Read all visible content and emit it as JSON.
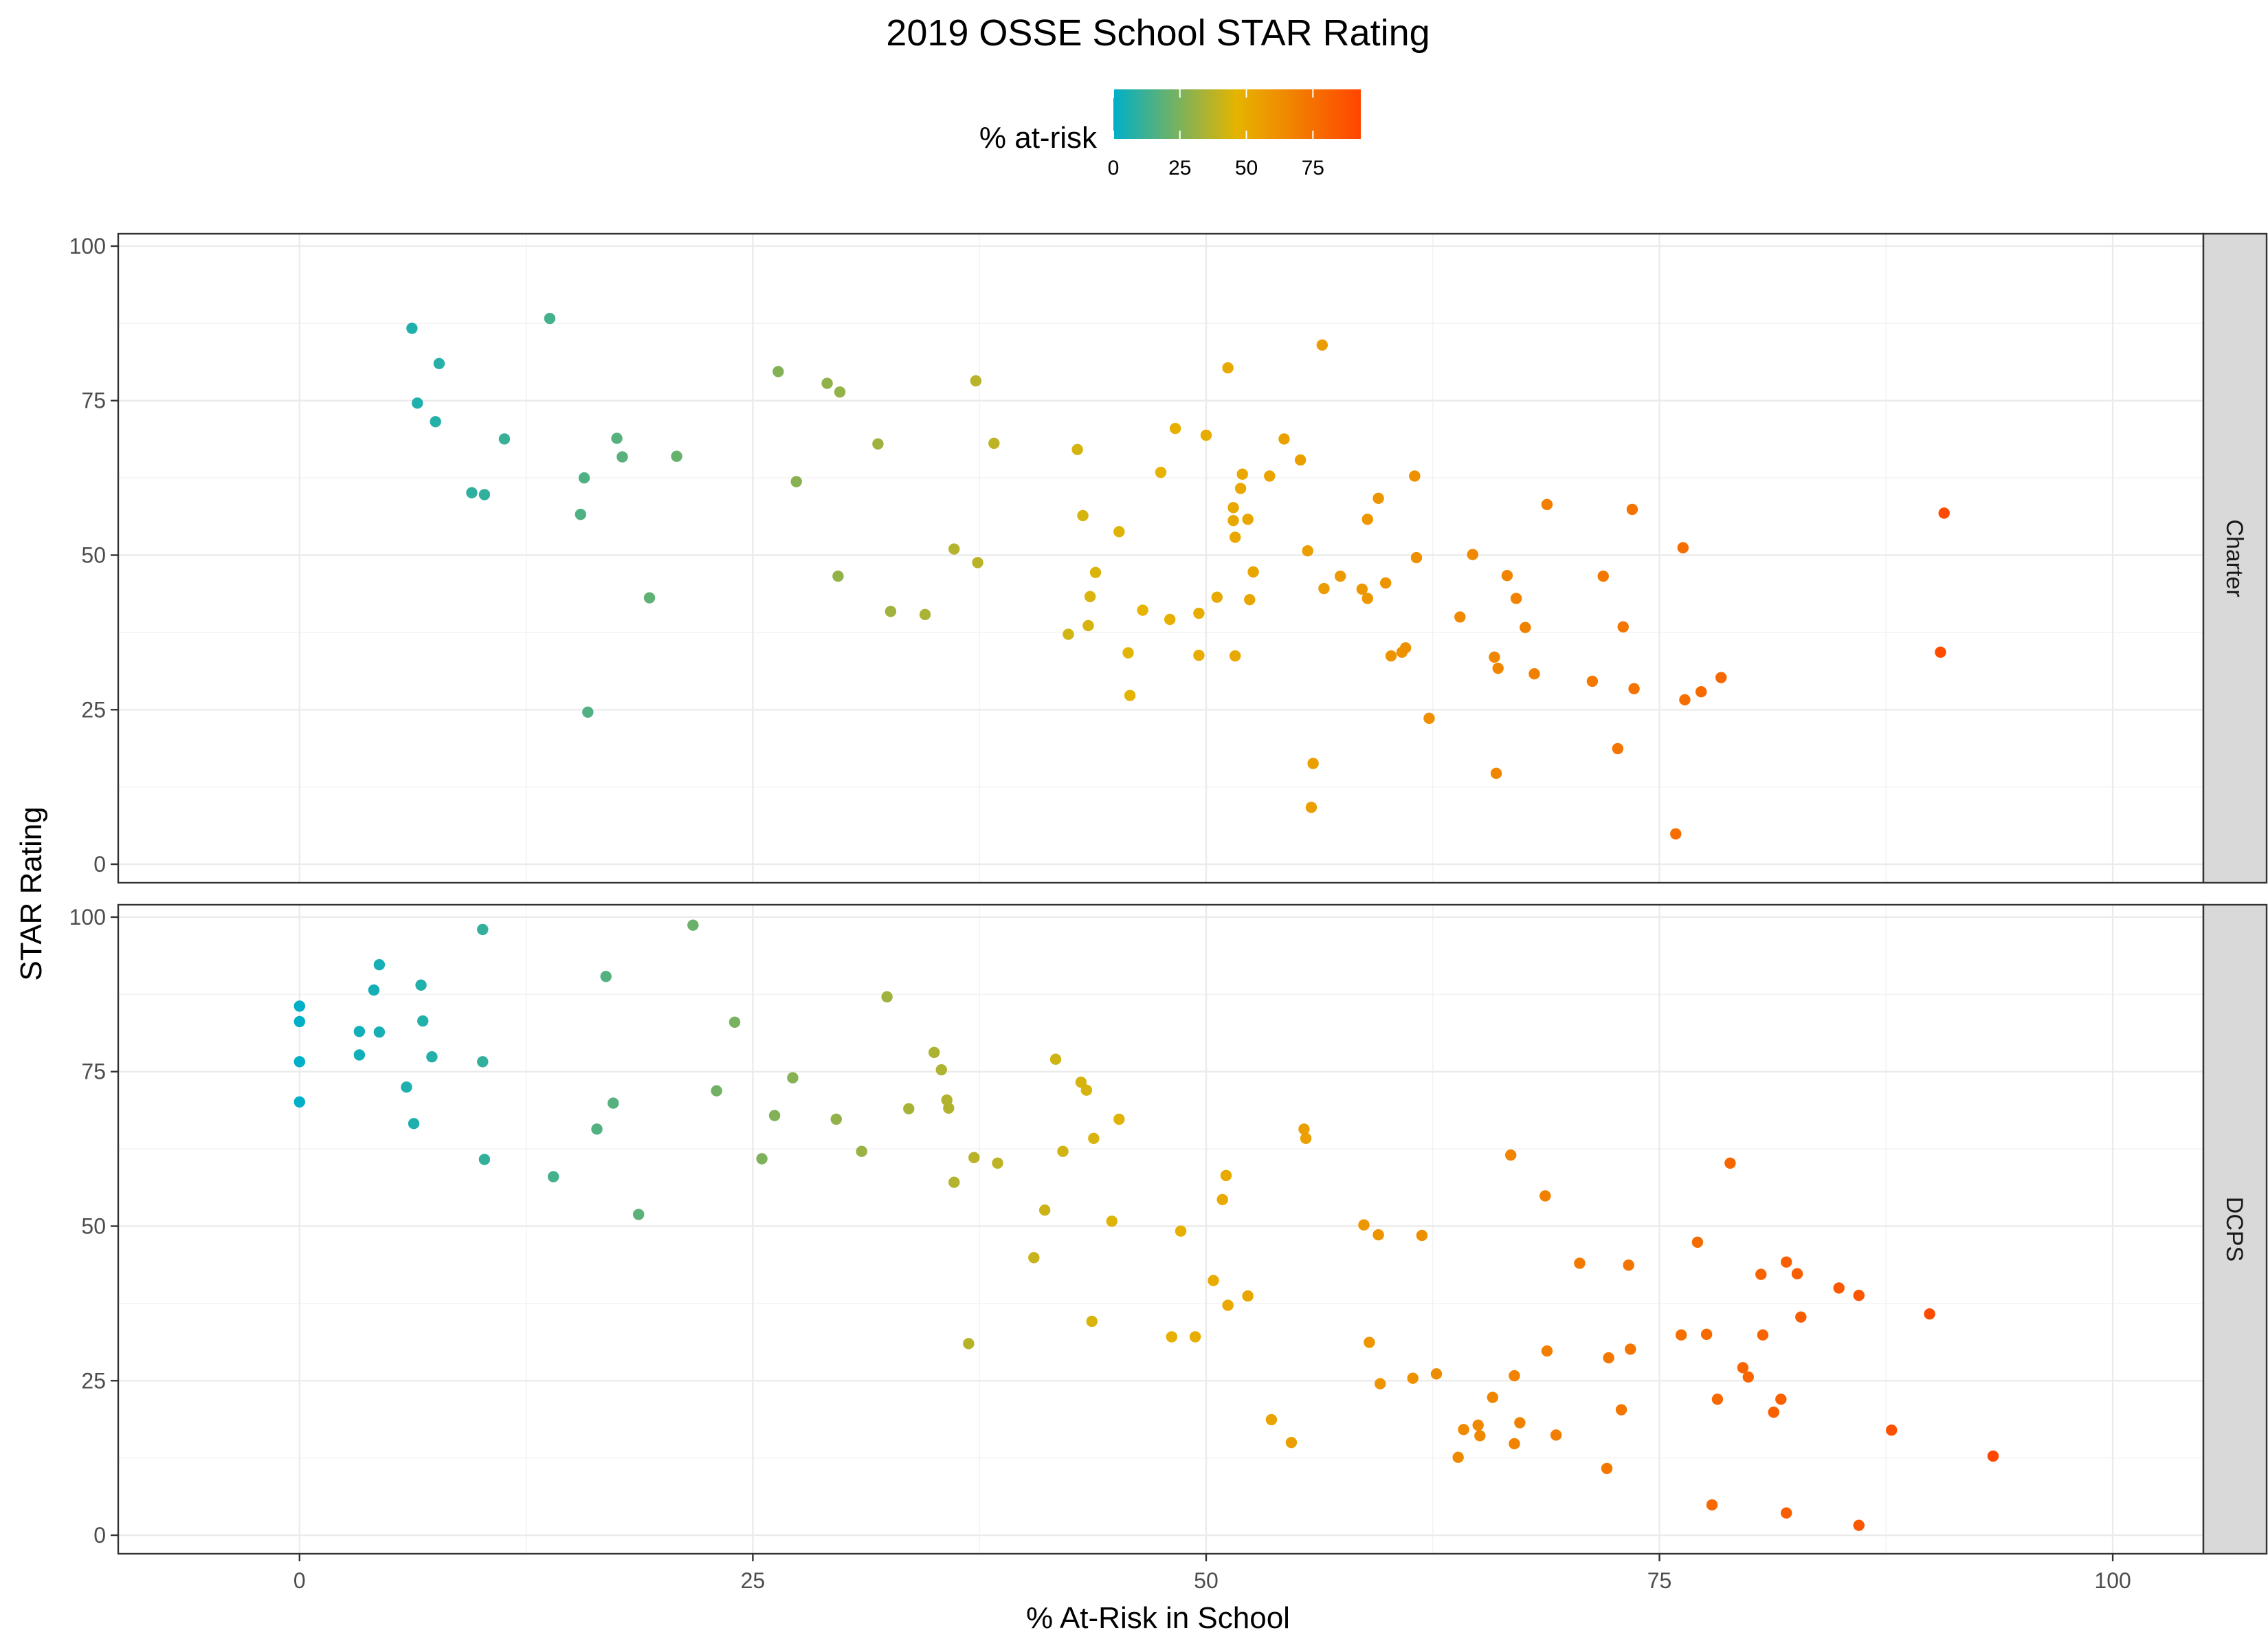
{
  "chart_data": {
    "type": "scatter",
    "title": "2019 OSSE School STAR Rating",
    "xlabel": "% At-Risk in School",
    "ylabel": "STAR Rating",
    "xlim": [
      -10,
      105
    ],
    "ylim": [
      -3,
      102
    ],
    "x_ticks": [
      0,
      25,
      50,
      75,
      100
    ],
    "y_ticks": [
      0,
      25,
      50,
      75,
      100
    ],
    "grid": true,
    "legend": {
      "title": "% at-risk",
      "position": "top",
      "ticks": [
        0,
        25,
        50,
        75
      ],
      "range": [
        0,
        93
      ],
      "colors": [
        "#00AFC8",
        "#E6B400",
        "#FF4500"
      ]
    },
    "facets": [
      {
        "name": "Charter",
        "points": [
          [
            6.2,
            86.7
          ],
          [
            13.8,
            88.3
          ],
          [
            7.7,
            81.0
          ],
          [
            6.5,
            74.6
          ],
          [
            7.5,
            71.6
          ],
          [
            11.3,
            68.8
          ],
          [
            17.5,
            68.9
          ],
          [
            17.8,
            65.9
          ],
          [
            20.8,
            66.0
          ],
          [
            15.7,
            62.5
          ],
          [
            9.5,
            60.1
          ],
          [
            10.2,
            59.8
          ],
          [
            15.5,
            56.6
          ],
          [
            19.3,
            43.1
          ],
          [
            15.9,
            24.6
          ],
          [
            26.4,
            79.7
          ],
          [
            29.1,
            77.8
          ],
          [
            29.8,
            76.4
          ],
          [
            37.3,
            78.2
          ],
          [
            27.4,
            61.9
          ],
          [
            31.9,
            68.0
          ],
          [
            38.3,
            68.1
          ],
          [
            36.1,
            51.0
          ],
          [
            37.4,
            48.8
          ],
          [
            29.7,
            46.6
          ],
          [
            32.6,
            40.9
          ],
          [
            34.5,
            40.4
          ],
          [
            42.9,
            67.1
          ],
          [
            43.2,
            56.4
          ],
          [
            43.6,
            43.3
          ],
          [
            43.9,
            47.2
          ],
          [
            43.5,
            38.6
          ],
          [
            42.4,
            37.2
          ],
          [
            45.2,
            53.8
          ],
          [
            45.7,
            34.2
          ],
          [
            45.8,
            27.3
          ],
          [
            46.5,
            41.1
          ],
          [
            47.5,
            63.4
          ],
          [
            48.0,
            39.6
          ],
          [
            48.3,
            70.5
          ],
          [
            49.6,
            40.6
          ],
          [
            49.6,
            33.8
          ],
          [
            50.0,
            69.4
          ],
          [
            50.6,
            43.2
          ],
          [
            51.2,
            80.3
          ],
          [
            51.5,
            57.7
          ],
          [
            51.5,
            55.6
          ],
          [
            51.6,
            52.9
          ],
          [
            51.6,
            33.7
          ],
          [
            51.9,
            60.8
          ],
          [
            52.0,
            63.1
          ],
          [
            52.3,
            55.8
          ],
          [
            52.4,
            42.8
          ],
          [
            52.6,
            47.3
          ],
          [
            53.5,
            62.8
          ],
          [
            54.3,
            68.8
          ],
          [
            55.2,
            65.4
          ],
          [
            55.6,
            50.7
          ],
          [
            55.9,
            16.3
          ],
          [
            55.8,
            9.2
          ],
          [
            56.4,
            84.0
          ],
          [
            56.5,
            44.6
          ],
          [
            57.4,
            46.6
          ],
          [
            58.6,
            44.5
          ],
          [
            58.9,
            43.0
          ],
          [
            58.9,
            55.8
          ],
          [
            59.5,
            59.2
          ],
          [
            59.9,
            45.5
          ],
          [
            60.2,
            33.7
          ],
          [
            60.8,
            34.3
          ],
          [
            61.0,
            35.0
          ],
          [
            61.5,
            62.8
          ],
          [
            61.6,
            49.6
          ],
          [
            62.3,
            23.6
          ],
          [
            64.0,
            40.0
          ],
          [
            64.7,
            50.1
          ],
          [
            65.9,
            33.5
          ],
          [
            66.1,
            31.7
          ],
          [
            66.0,
            14.7
          ],
          [
            66.6,
            46.7
          ],
          [
            67.1,
            43.0
          ],
          [
            67.6,
            38.3
          ],
          [
            68.1,
            30.8
          ],
          [
            68.8,
            58.2
          ],
          [
            71.3,
            29.6
          ],
          [
            71.9,
            46.6
          ],
          [
            72.7,
            18.7
          ],
          [
            73.0,
            38.4
          ],
          [
            73.5,
            57.4
          ],
          [
            73.6,
            28.4
          ],
          [
            75.9,
            4.9
          ],
          [
            76.3,
            51.2
          ],
          [
            76.4,
            26.6
          ],
          [
            77.3,
            27.9
          ],
          [
            78.4,
            30.2
          ],
          [
            90.5,
            34.3
          ],
          [
            90.7,
            56.8
          ]
        ]
      },
      {
        "name": "DCPS",
        "points": [
          [
            0.0,
            85.6
          ],
          [
            0.0,
            83.1
          ],
          [
            0.0,
            76.6
          ],
          [
            0.0,
            70.1
          ],
          [
            3.3,
            81.5
          ],
          [
            3.3,
            77.7
          ],
          [
            4.1,
            88.2
          ],
          [
            4.4,
            92.3
          ],
          [
            4.4,
            81.4
          ],
          [
            5.9,
            72.5
          ],
          [
            6.3,
            66.6
          ],
          [
            6.7,
            89.0
          ],
          [
            6.8,
            83.2
          ],
          [
            7.3,
            77.4
          ],
          [
            10.1,
            98.0
          ],
          [
            10.1,
            76.6
          ],
          [
            10.2,
            60.8
          ],
          [
            14.0,
            58.0
          ],
          [
            16.4,
            65.7
          ],
          [
            16.9,
            90.4
          ],
          [
            17.3,
            69.9
          ],
          [
            18.7,
            51.9
          ],
          [
            21.7,
            98.7
          ],
          [
            23.0,
            71.9
          ],
          [
            24.0,
            83.0
          ],
          [
            25.5,
            60.9
          ],
          [
            26.2,
            67.9
          ],
          [
            27.2,
            74.0
          ],
          [
            29.6,
            67.3
          ],
          [
            31.0,
            62.1
          ],
          [
            32.4,
            87.1
          ],
          [
            33.6,
            69.0
          ],
          [
            35.0,
            78.1
          ],
          [
            35.4,
            75.3
          ],
          [
            35.7,
            70.4
          ],
          [
            35.8,
            69.1
          ],
          [
            36.1,
            57.1
          ],
          [
            36.9,
            31.0
          ],
          [
            37.2,
            61.1
          ],
          [
            38.5,
            60.2
          ],
          [
            40.5,
            44.9
          ],
          [
            41.1,
            52.6
          ],
          [
            41.7,
            77.0
          ],
          [
            42.1,
            62.1
          ],
          [
            43.1,
            73.3
          ],
          [
            43.4,
            72.0
          ],
          [
            43.7,
            34.6
          ],
          [
            43.8,
            64.2
          ],
          [
            44.8,
            50.8
          ],
          [
            45.2,
            67.3
          ],
          [
            48.1,
            32.1
          ],
          [
            48.6,
            49.2
          ],
          [
            49.4,
            32.1
          ],
          [
            50.4,
            41.2
          ],
          [
            50.9,
            54.3
          ],
          [
            51.1,
            58.2
          ],
          [
            51.2,
            37.2
          ],
          [
            52.3,
            38.7
          ],
          [
            53.6,
            18.7
          ],
          [
            54.7,
            15.0
          ],
          [
            55.4,
            65.7
          ],
          [
            55.5,
            64.2
          ],
          [
            58.7,
            50.2
          ],
          [
            59.0,
            31.2
          ],
          [
            59.5,
            48.6
          ],
          [
            59.6,
            24.5
          ],
          [
            61.4,
            25.4
          ],
          [
            61.9,
            48.5
          ],
          [
            62.7,
            26.1
          ],
          [
            63.9,
            12.6
          ],
          [
            64.2,
            17.1
          ],
          [
            65.0,
            17.8
          ],
          [
            65.1,
            16.1
          ],
          [
            65.8,
            22.3
          ],
          [
            66.8,
            61.5
          ],
          [
            67.0,
            25.8
          ],
          [
            67.0,
            14.8
          ],
          [
            67.3,
            18.2
          ],
          [
            68.7,
            54.9
          ],
          [
            68.8,
            29.8
          ],
          [
            69.3,
            16.2
          ],
          [
            70.6,
            44.0
          ],
          [
            72.1,
            10.8
          ],
          [
            72.2,
            28.7
          ],
          [
            72.9,
            20.3
          ],
          [
            73.3,
            43.7
          ],
          [
            73.4,
            30.1
          ],
          [
            76.2,
            32.4
          ],
          [
            77.1,
            47.4
          ],
          [
            77.6,
            32.5
          ],
          [
            77.9,
            4.9
          ],
          [
            78.2,
            22.0
          ],
          [
            78.9,
            60.2
          ],
          [
            79.6,
            27.1
          ],
          [
            79.9,
            25.6
          ],
          [
            80.6,
            42.2
          ],
          [
            80.7,
            32.4
          ],
          [
            81.3,
            19.9
          ],
          [
            81.7,
            22.0
          ],
          [
            82.0,
            44.2
          ],
          [
            82.0,
            3.6
          ],
          [
            82.6,
            42.3
          ],
          [
            82.8,
            35.3
          ],
          [
            84.9,
            40.0
          ],
          [
            86.0,
            38.8
          ],
          [
            86.0,
            1.6
          ],
          [
            87.8,
            17.0
          ],
          [
            89.9,
            35.8
          ],
          [
            93.4,
            12.8
          ]
        ]
      }
    ]
  }
}
